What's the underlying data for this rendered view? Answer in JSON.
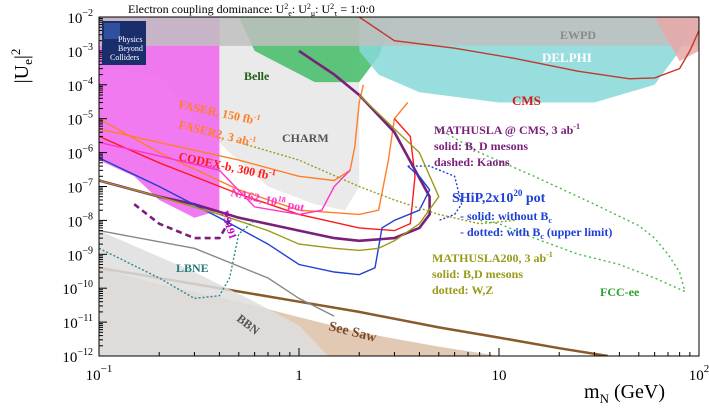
{
  "chart_data": {
    "type": "line",
    "title": "Electron coupling dominance: U",
    "title_parts": {
      "e2": "e",
      "mu2": "μ",
      "tau2": "τ",
      "sep": ": U",
      "eq": " = 1:0:0",
      "sup": "2"
    },
    "xlabel": "m",
    "xlabel_sub": "N",
    "xlabel_unit": " (GeV)",
    "ylabel": "|U",
    "ylabel_sub": "e",
    "ylabel_sup": "2",
    "ylabel_close": "|",
    "x_scale": "log",
    "y_scale": "log",
    "xlim": [
      0.1,
      100
    ],
    "ylim": [
      1e-12,
      0.01
    ],
    "x_ticks": [
      {
        "value": 0.1,
        "base": "10",
        "exp": "−1"
      },
      {
        "value": 1,
        "base": "1",
        "exp": ""
      },
      {
        "value": 10,
        "base": "10",
        "exp": ""
      },
      {
        "value": 100,
        "base": "10",
        "exp": "2"
      }
    ],
    "y_ticks": [
      {
        "value": 1e-12,
        "base": "10",
        "exp": "−12"
      },
      {
        "value": 1e-11,
        "base": "10",
        "exp": "−11"
      },
      {
        "value": 1e-10,
        "base": "10",
        "exp": "−10"
      },
      {
        "value": 1e-09,
        "base": "10",
        "exp": "−9"
      },
      {
        "value": 1e-08,
        "base": "10",
        "exp": "−8"
      },
      {
        "value": 1e-07,
        "base": "10",
        "exp": "−7"
      },
      {
        "value": 1e-06,
        "base": "10",
        "exp": "−6"
      },
      {
        "value": 1e-05,
        "base": "10",
        "exp": "−5"
      },
      {
        "value": 0.0001,
        "base": "10",
        "exp": "−4"
      },
      {
        "value": 0.001,
        "base": "10",
        "exp": "−3"
      },
      {
        "value": 0.01,
        "base": "10",
        "exp": "−2"
      }
    ],
    "regions": [
      {
        "name": "See Saw",
        "fill": "#dcbfa6",
        "points": [
          [
            0.1,
            4e-10
          ],
          [
            0.2,
            1.3e-10
          ],
          [
            0.5,
            4e-11
          ],
          [
            1,
            1.4e-11
          ],
          [
            2,
            5e-12
          ],
          [
            5,
            1.9e-12
          ],
          [
            10,
            1e-12
          ],
          [
            0.1,
            1e-12
          ]
        ],
        "upper": [
          [
            0.1,
            4e-10
          ],
          [
            0.2,
            2e-10
          ],
          [
            0.5,
            8e-11
          ],
          [
            1,
            4e-11
          ],
          [
            2,
            2e-11
          ],
          [
            5,
            7e-12
          ],
          [
            10,
            3.5e-12
          ],
          [
            20,
            1.7e-12
          ],
          [
            35,
            1e-12
          ]
        ]
      },
      {
        "name": "BBN",
        "fill": "#dedede",
        "points": [
          [
            0.1,
            5e-09
          ],
          [
            0.3,
            3e-10
          ],
          [
            0.6,
            4e-11
          ],
          [
            1,
            8e-12
          ],
          [
            1.4,
            1e-12
          ],
          [
            0.1,
            1e-12
          ]
        ]
      },
      {
        "name": "CHARM",
        "fill": "#e6e6e6",
        "points": [
          [
            0.1,
            0.01
          ],
          [
            2,
            0.01
          ],
          [
            2,
            1e-07
          ],
          [
            1.7,
            2e-08
          ],
          [
            1.2,
            3e-08
          ],
          [
            0.7,
            1e-07
          ],
          [
            0.45,
            1e-06
          ],
          [
            0.3,
            1e-05
          ],
          [
            0.2,
            0.0002
          ],
          [
            0.1,
            0.0003
          ]
        ]
      },
      {
        "name": "PS191",
        "fill": "#f06cf0",
        "points": [
          [
            0.1,
            0.01
          ],
          [
            0.4,
            0.01
          ],
          [
            0.4,
            2e-08
          ],
          [
            0.3,
            1.2e-08
          ],
          [
            0.2,
            4e-08
          ],
          [
            0.15,
            2e-07
          ],
          [
            0.1,
            6e-07
          ]
        ]
      },
      {
        "name": "Belle",
        "fill": "#4cbf6e",
        "points": [
          [
            0.5,
            0.01
          ],
          [
            3,
            0.01
          ],
          [
            2.5,
            0.0007
          ],
          [
            2,
            0.00012
          ],
          [
            1.2,
            0.00012
          ],
          [
            0.6,
            0.001
          ]
        ]
      },
      {
        "name": "DELPHI",
        "fill": "#86d8d8",
        "points": [
          [
            2,
            0.01
          ],
          [
            90,
            0.01
          ],
          [
            80,
            0.001
          ],
          [
            60,
            0.0001
          ],
          [
            30,
            3e-05
          ],
          [
            10,
            3e-05
          ],
          [
            4,
            6e-05
          ],
          [
            2.5,
            0.0002
          ],
          [
            2,
            0.001
          ]
        ]
      },
      {
        "name": "EWPD",
        "fill": "#bfbfbf",
        "points": [
          [
            0.1,
            0.0014
          ],
          [
            100,
            0.0014
          ],
          [
            100,
            0.01
          ],
          [
            0.1,
            0.01
          ]
        ]
      },
      {
        "name": "CMS",
        "fill": "#e7a8a8",
        "points": [
          [
            60,
            0.01
          ],
          [
            100,
            0.01
          ],
          [
            100,
            0.001
          ],
          [
            80,
            0.0005
          ],
          [
            70,
            0.002
          ]
        ]
      }
    ],
    "curves": [
      {
        "name": "CMS",
        "color": "#c0392b",
        "dash": "",
        "points": [
          [
            2,
            0.01
          ],
          [
            3,
            0.002
          ],
          [
            6,
            0.0012
          ],
          [
            12,
            0.0006
          ],
          [
            25,
            0.00025
          ],
          [
            45,
            0.00015
          ],
          [
            60,
            0.00016
          ],
          [
            80,
            0.0003
          ],
          [
            90,
            0.001
          ],
          [
            100,
            0.004
          ]
        ]
      },
      {
        "name": "FASER, 150 fb⁻¹",
        "color": "#ff7f27",
        "dash": "",
        "points": [
          [
            0.1,
            5e-06
          ],
          [
            0.2,
            2e-06
          ],
          [
            0.5,
            6e-07
          ],
          [
            1,
            2e-07
          ],
          [
            1.5,
            1.5e-07
          ],
          [
            1.8,
            3e-07
          ],
          [
            1.9,
            1.5e-06
          ],
          [
            2,
            3e-05
          ],
          [
            2.1,
            0.0001
          ]
        ]
      },
      {
        "name": "FASER2, 3 ab⁻¹",
        "color": "#ff7f27",
        "dash": "",
        "points": [
          [
            0.1,
            1e-05
          ],
          [
            0.2,
            1e-06
          ],
          [
            0.5,
            8e-08
          ],
          [
            1,
            2e-08
          ],
          [
            2,
            1.5e-08
          ],
          [
            2.5,
            2e-08
          ],
          [
            2.8,
            6e-07
          ],
          [
            3,
            1e-05
          ],
          [
            3.5,
            3e-05
          ]
        ]
      },
      {
        "name": "CODEX-b, 300 fb⁻¹",
        "color": "#ff1a1a",
        "dash": "",
        "points": [
          [
            0.1,
            3e-06
          ],
          [
            0.2,
            5e-07
          ],
          [
            0.5,
            6e-08
          ],
          [
            1,
            1.5e-08
          ],
          [
            2,
            6e-09
          ],
          [
            3,
            5e-09
          ],
          [
            3.6,
            8e-09
          ],
          [
            3.8,
            2e-07
          ],
          [
            3.6,
            3e-06
          ],
          [
            3,
            1e-05
          ]
        ]
      },
      {
        "name": "NA62, 10¹⁸ pot",
        "color": "#ff33cc",
        "dash": "",
        "points": [
          [
            0.1,
            2e-06
          ],
          [
            0.2,
            8e-07
          ],
          [
            0.4,
            3e-07
          ],
          [
            0.6,
            2.5e-08
          ],
          [
            1,
            1.5e-08
          ],
          [
            1.3,
            2e-08
          ],
          [
            1.5,
            1e-07
          ],
          [
            1.8,
            3e-07
          ]
        ]
      },
      {
        "name": "MATHUSLA @ CMS solid",
        "color": "#7a1f7a",
        "dash": "",
        "width": 2.6,
        "points": [
          [
            0.1,
            1.5e-07
          ],
          [
            0.2,
            5e-08
          ],
          [
            0.3,
            3e-08
          ],
          [
            0.5,
            1.2e-08
          ],
          [
            1,
            5e-09
          ],
          [
            1.5,
            3e-09
          ],
          [
            2,
            2.5e-09
          ],
          [
            3,
            3e-09
          ],
          [
            4,
            6e-09
          ],
          [
            4.5,
            1.5e-08
          ],
          [
            4.5,
            5e-08
          ],
          [
            3,
            4e-06
          ],
          [
            2,
            5e-05
          ],
          [
            1.5,
            0.0002
          ],
          [
            1,
            0.001
          ]
        ]
      },
      {
        "name": "MATHUSLA @ CMS dashed",
        "color": "#7a1f7a",
        "dash": "6,4",
        "width": 2.6,
        "points": [
          [
            0.15,
            3e-08
          ],
          [
            0.2,
            8e-09
          ],
          [
            0.3,
            3e-09
          ],
          [
            0.4,
            3e-09
          ],
          [
            0.45,
            1e-08
          ]
        ]
      },
      {
        "name": "SHiP solid",
        "color": "#1f3fd6",
        "dash": "",
        "points": [
          [
            0.1,
            7e-07
          ],
          [
            0.2,
            1e-07
          ],
          [
            0.4,
            1.2e-08
          ],
          [
            0.7,
            2e-09
          ],
          [
            1,
            5e-10
          ],
          [
            1.5,
            3e-10
          ],
          [
            2,
            2.5e-10
          ],
          [
            2.4,
            4e-10
          ],
          [
            2.6,
            6e-09
          ],
          [
            3,
            1e-08
          ],
          [
            4,
            2e-08
          ],
          [
            4.5,
            8e-08
          ],
          [
            4,
            2e-07
          ],
          [
            3.5,
            4e-07
          ]
        ]
      },
      {
        "name": "SHiP dotted",
        "color": "#1f3fd6",
        "dash": "2,2",
        "points": [
          [
            3.5,
            4e-07
          ],
          [
            4.5,
            4e-07
          ],
          [
            6,
            2e-07
          ],
          [
            6.5,
            3e-08
          ],
          [
            6,
            1.5e-08
          ],
          [
            5,
            1e-08
          ]
        ]
      },
      {
        "name": "MATHUSLA200 solid",
        "color": "#9a9a1a",
        "dash": "",
        "points": [
          [
            0.1,
            1.5e-07
          ],
          [
            0.2,
            5e-08
          ],
          [
            0.4,
            1.5e-08
          ],
          [
            0.7,
            5e-09
          ],
          [
            1,
            2e-09
          ],
          [
            1.5,
            1.5e-09
          ],
          [
            2,
            1.3e-09
          ],
          [
            2.5,
            1.5e-09
          ],
          [
            3,
            2.5e-09
          ],
          [
            4,
            8e-09
          ],
          [
            5,
            5e-08
          ],
          [
            4,
            1e-06
          ],
          [
            3,
            5e-06
          ],
          [
            2,
            5e-05
          ]
        ]
      },
      {
        "name": "MATHUSLA200 dotted",
        "color": "#9a9a1a",
        "dash": "2,2",
        "points": [
          [
            0.5,
            2e-06
          ],
          [
            1,
            6e-07
          ],
          [
            2,
            1e-07
          ],
          [
            3,
            4e-08
          ],
          [
            5,
            1.5e-08
          ],
          [
            8,
            8e-09
          ],
          [
            12,
            1e-08
          ]
        ]
      },
      {
        "name": "FCC-ee",
        "color": "#44bb44",
        "dash": "2,3",
        "points": [
          [
            5,
            5e-06
          ],
          [
            8,
            1e-06
          ],
          [
            15,
            2e-07
          ],
          [
            30,
            3e-08
          ],
          [
            50,
            7e-09
          ],
          [
            60,
            3e-09
          ],
          [
            70,
            1e-09
          ],
          [
            80,
            3e-10
          ],
          [
            85,
            8e-11
          ],
          [
            60,
            2e-10
          ],
          [
            40,
            5e-10
          ],
          [
            25,
            1e-09
          ],
          [
            15,
            3e-09
          ],
          [
            10,
            8e-09
          ],
          [
            8,
            1e-08
          ]
        ]
      },
      {
        "name": "LBNE",
        "color": "#2b8a8a",
        "dash": "2,2",
        "points": [
          [
            0.1,
            1.5e-09
          ],
          [
            0.2,
            2e-10
          ],
          [
            0.3,
            5e-11
          ],
          [
            0.4,
            6e-11
          ],
          [
            0.45,
            2e-10
          ],
          [
            0.5,
            4e-09
          ],
          [
            0.6,
            1e-08
          ]
        ]
      },
      {
        "name": "Grey",
        "color": "#888888",
        "dash": "",
        "points": [
          [
            0.1,
            5e-09
          ],
          [
            0.3,
            1.5e-09
          ],
          [
            0.7,
            2e-10
          ],
          [
            1,
            5e-11
          ],
          [
            1.5,
            1.5e-11
          ]
        ]
      }
    ],
    "labels": {
      "ewpd": "EWPD",
      "delphi": "DELPHI",
      "belle": "Belle",
      "cms": "CMS",
      "faser": "FASER, 150 fb",
      "faser_sup": "-1",
      "faser2": "FASER2, 3 ab",
      "faser2_sup": "-1",
      "charm": "CHARM",
      "codexb": "CODEX-b, 300 fb",
      "codexb_sup": "-1",
      "na62": "NA62, 10",
      "na62_sup": "18",
      "na62_tail": " pot",
      "ps191": "PS191",
      "mathusla_cms_1": "MATHUSLA @ CMS, 3 ab",
      "mathusla_cms_1_sup": "-1",
      "mathusla_cms_2": "solid: B, D mesons",
      "mathusla_cms_3": "dashed: Kaons",
      "ship_1": "SHiP,2x10",
      "ship_1_sup": "20",
      "ship_1_tail": " pot",
      "ship_2": "- solid:  without B",
      "ship_2_sub": "c",
      "ship_3": "- dotted: with B",
      "ship_3_sub": "c",
      "ship_3_tail": " (upper limit)",
      "mathusla200_1": "MATHUSLA200, 3 ab",
      "mathusla200_1_sup": "-1",
      "mathusla200_2": "solid: B,D mesons",
      "mathusla200_3": "dotted: W,Z",
      "fccee": "FCC-ee",
      "lbne": "LBNE",
      "bbn": "BBN",
      "seesaw": "See Saw",
      "logo_1": "Physics",
      "logo_2": "Beyond",
      "logo_3": "Colliders"
    },
    "colors": {
      "ewpd": "#8a8a8a",
      "delphi": "#ffffff",
      "belle": "#1f5f1f",
      "cms": "#d11a1a",
      "faser": "#ff7f27",
      "charm": "#555555",
      "codexb": "#ff1a1a",
      "na62": "#ff33cc",
      "ps191": "#c000c0",
      "mathusla_cms": "#7a1f7a",
      "ship": "#1f3fd6",
      "mathusla200": "#9a9a1a",
      "fccee": "#2ca02c",
      "lbne": "#2b7a7a",
      "bbn": "#555555",
      "seesaw": "#7a4a2a"
    }
  }
}
